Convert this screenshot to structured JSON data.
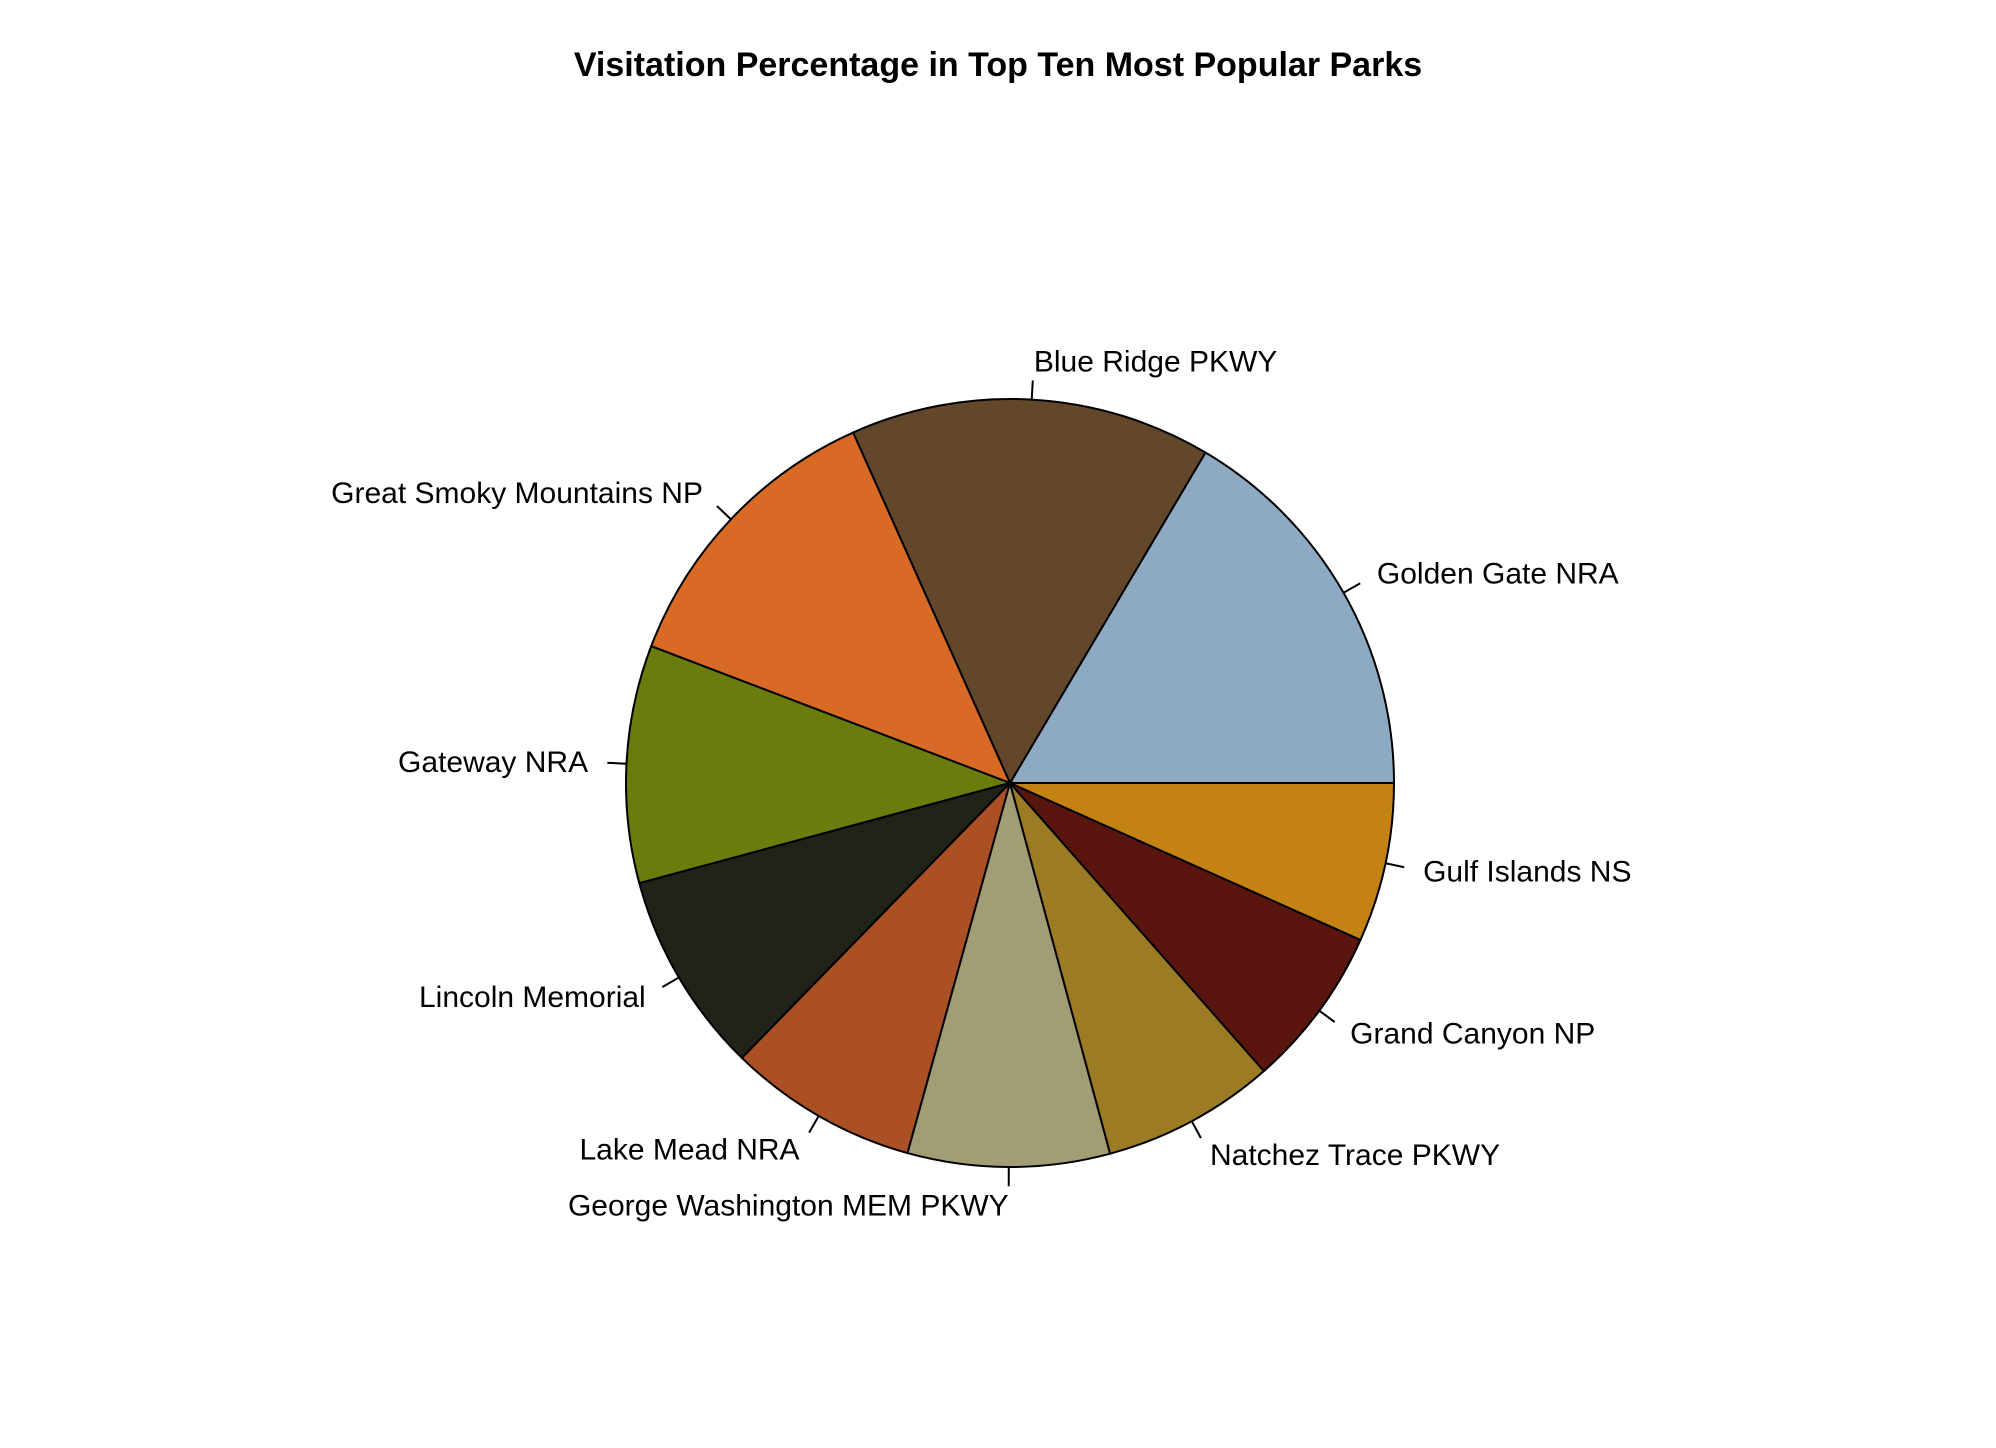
{
  "chart_data": {
    "type": "pie",
    "title": "Visitation Percentage in Top Ten Most Popular Parks",
    "start_angle_deg": 0,
    "direction": "counterclockwise",
    "slices": [
      {
        "label": "Golden Gate NRA",
        "value": 16.5,
        "color": "#8EA9C2"
      },
      {
        "label": "Blue Ridge PKWY",
        "value": 15.2,
        "color": "#63472B"
      },
      {
        "label": "Great Smoky Mountains NP",
        "value": 12.5,
        "color": "#D86A25"
      },
      {
        "label": "Gateway NRA",
        "value": 10.0,
        "color": "#6B7B0C"
      },
      {
        "label": "Lincoln Memorial",
        "value": 8.5,
        "color": "#1F2318"
      },
      {
        "label": "Lake Mead NRA",
        "value": 8.0,
        "color": "#AA5024"
      },
      {
        "label": "George Washington MEM PKWY",
        "value": 8.5,
        "color": "#A19D75"
      },
      {
        "label": "Natchez Trace PKWY",
        "value": 7.3,
        "color": "#9C7B25"
      },
      {
        "label": "Grand Canyon NP",
        "value": 6.8,
        "color": "#59150E"
      },
      {
        "label": "Gulf Islands NS",
        "value": 6.7,
        "color": "#C48215"
      }
    ]
  }
}
